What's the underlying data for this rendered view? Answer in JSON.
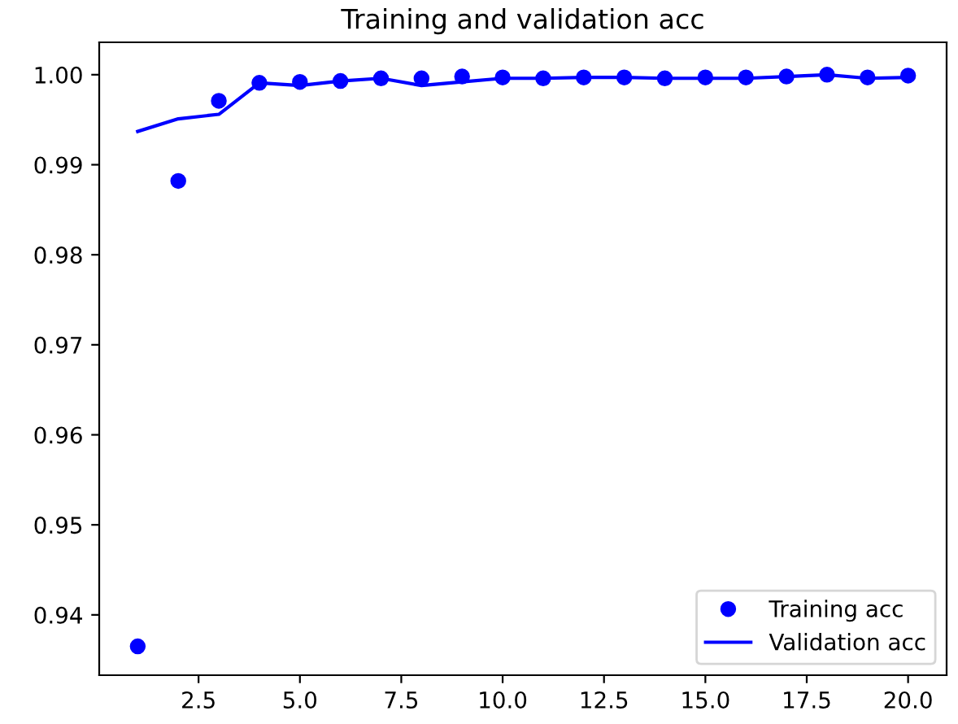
{
  "chart_data": {
    "type": "line",
    "title": "Training and validation acc",
    "x": [
      1,
      2,
      3,
      4,
      5,
      6,
      7,
      8,
      9,
      10,
      11,
      12,
      13,
      14,
      15,
      16,
      17,
      18,
      19,
      20
    ],
    "series": [
      {
        "name": "Training acc",
        "type": "scatter",
        "marker": "circle",
        "color": "#0000ff",
        "values": [
          0.9365,
          0.9882,
          0.9971,
          0.9991,
          0.9992,
          0.9993,
          0.9996,
          0.9996,
          0.9998,
          0.9997,
          0.9996,
          0.9997,
          0.9997,
          0.9996,
          0.9997,
          0.9997,
          0.9998,
          1.0,
          0.9997,
          0.9999
        ]
      },
      {
        "name": "Validation acc",
        "line_style": "solid",
        "color": "#0000ff",
        "values": [
          0.9937,
          0.9951,
          0.9956,
          0.9991,
          0.9988,
          0.9993,
          0.9996,
          0.9988,
          0.9992,
          0.9996,
          0.9996,
          0.9997,
          0.9997,
          0.9996,
          0.9996,
          0.9996,
          0.9998,
          1.0,
          0.9996,
          0.9997
        ]
      }
    ],
    "xlim": [
      0.05,
      20.95
    ],
    "ylim": [
      0.9333,
      1.0036
    ],
    "xticks": [
      {
        "value": 2.5,
        "label": "2.5"
      },
      {
        "value": 5,
        "label": "5.0"
      },
      {
        "value": 7.5,
        "label": "7.5"
      },
      {
        "value": 10,
        "label": "10.0"
      },
      {
        "value": 12.5,
        "label": "12.5"
      },
      {
        "value": 15,
        "label": "15.0"
      },
      {
        "value": 17.5,
        "label": "17.5"
      },
      {
        "value": 20,
        "label": "20.0"
      }
    ],
    "yticks": [
      {
        "value": 0.94,
        "label": "0.94"
      },
      {
        "value": 0.95,
        "label": "0.95"
      },
      {
        "value": 0.96,
        "label": "0.96"
      },
      {
        "value": 0.97,
        "label": "0.97"
      },
      {
        "value": 0.98,
        "label": "0.98"
      },
      {
        "value": 0.99,
        "label": "0.99"
      },
      {
        "value": 1.0,
        "label": "1.00"
      }
    ],
    "grid": false,
    "legend": "bottom right"
  }
}
